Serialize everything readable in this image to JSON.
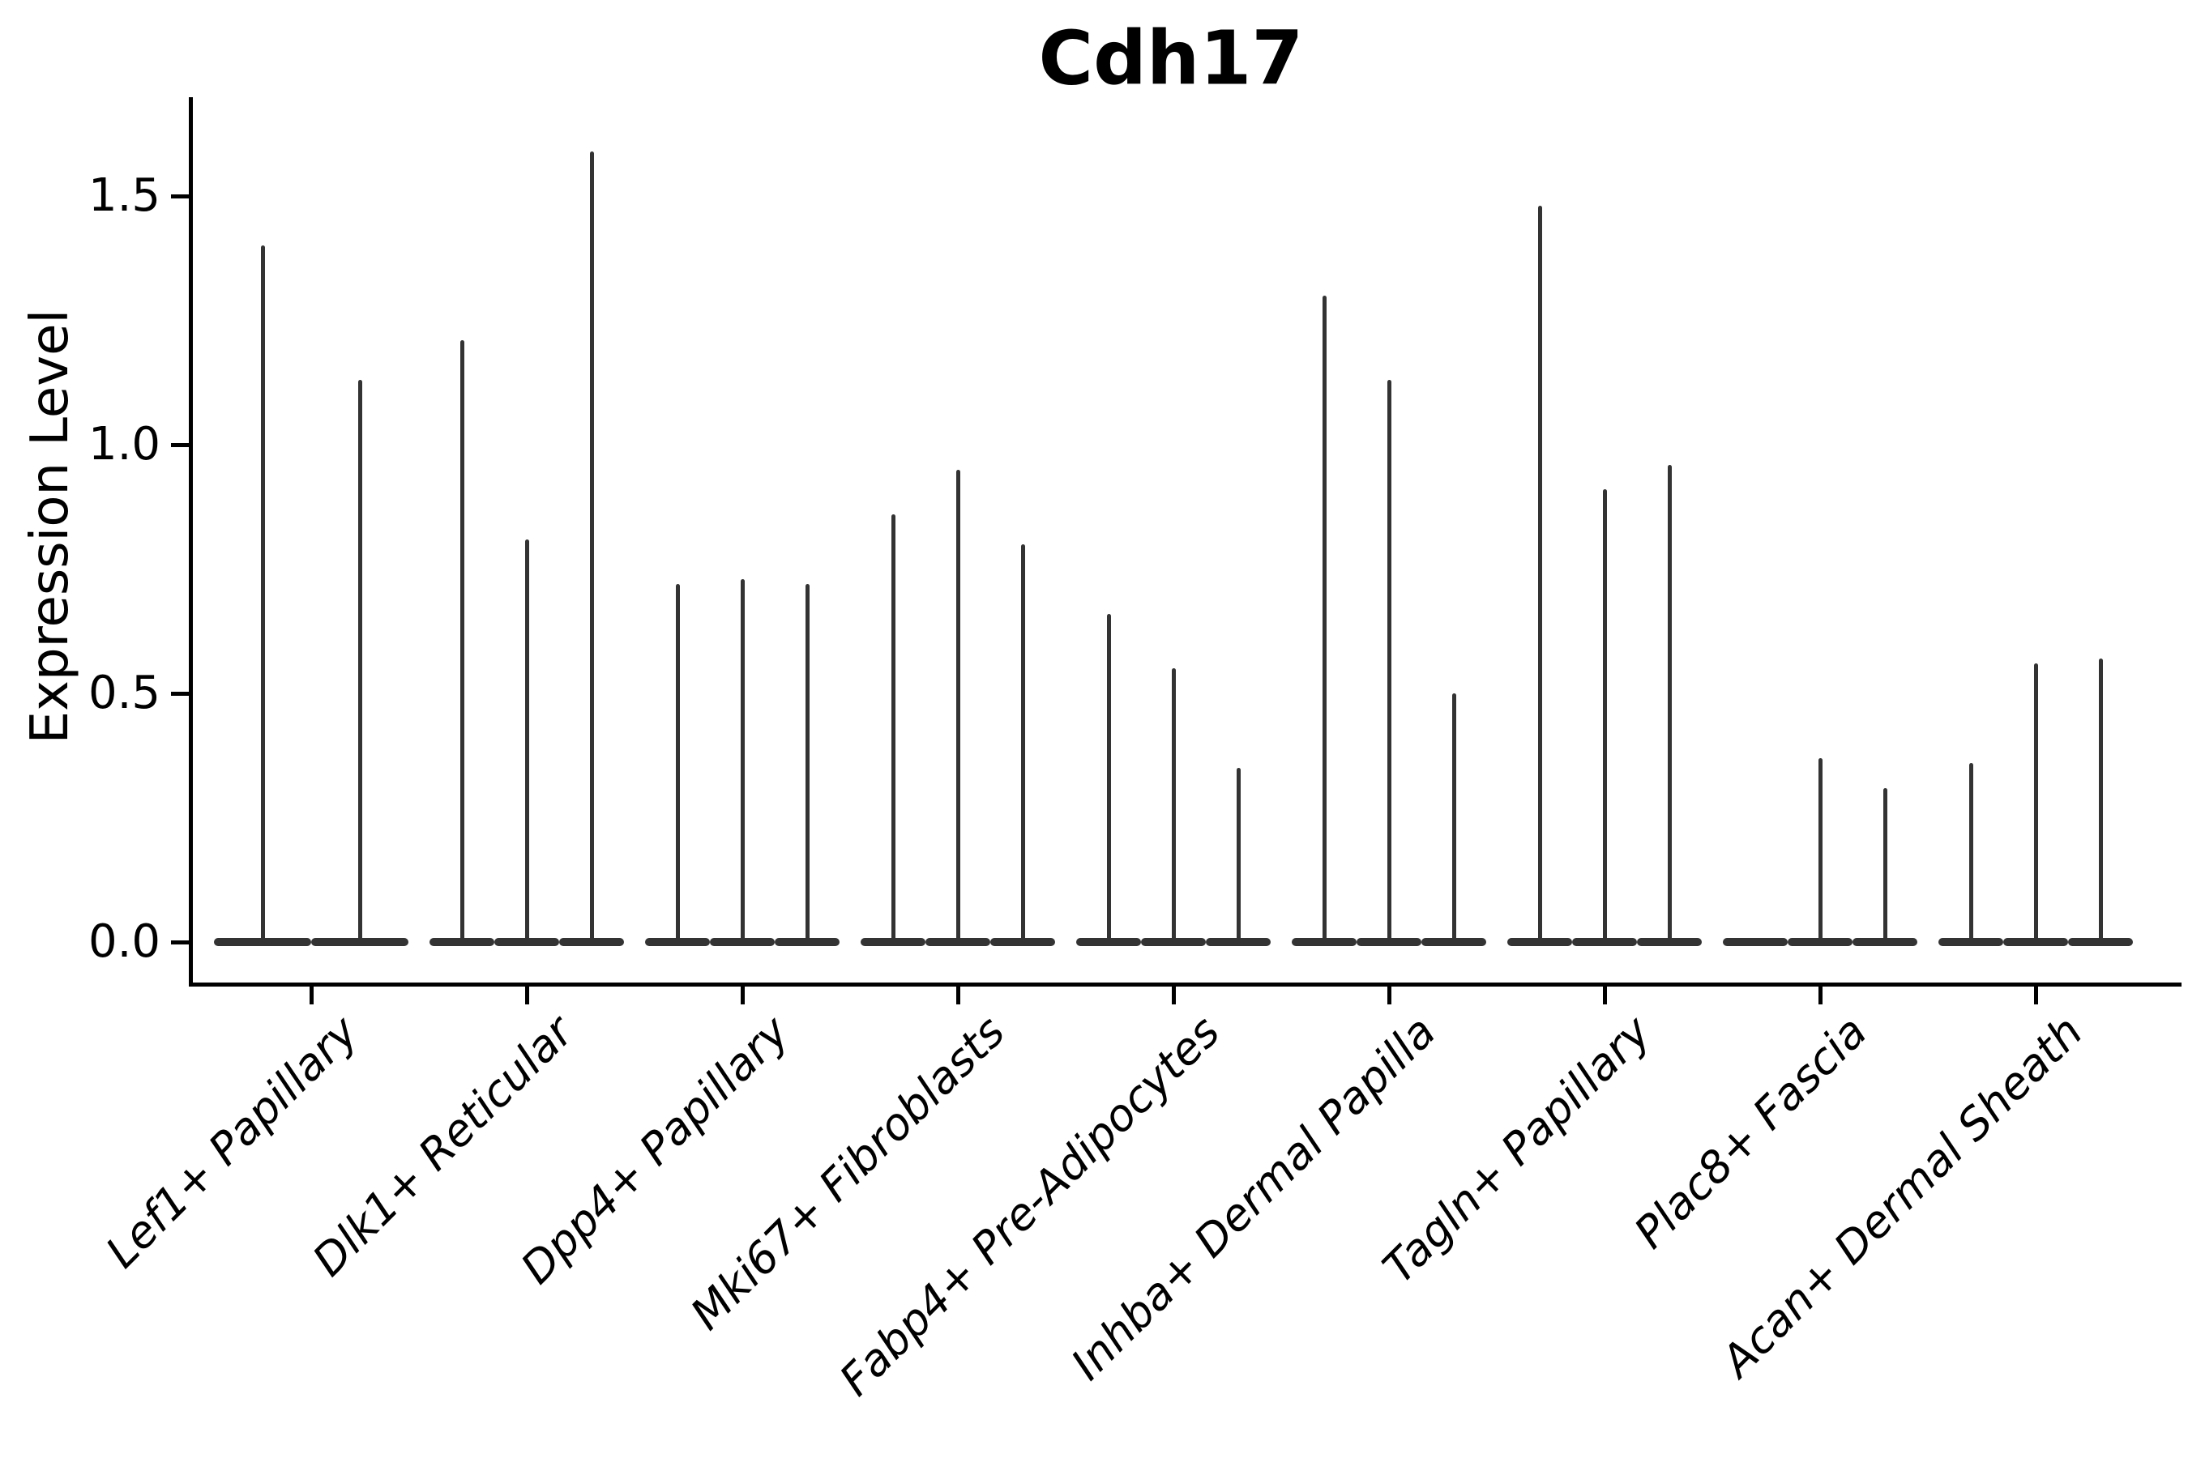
{
  "title": "Cdh17",
  "ylabel": "Expression Level",
  "chart_data": {
    "type": "violin",
    "title": "Cdh17",
    "xlabel": "",
    "ylabel": "Expression Level",
    "ylim": [
      -0.09,
      1.7
    ],
    "yticks": [
      0.0,
      0.5,
      1.0,
      1.5
    ],
    "ytick_labels": [
      "0.0",
      "0.5",
      "1.0",
      "1.5"
    ],
    "grid": false,
    "legend_position": "none",
    "violin_color": "#333333",
    "axis_color": "#000000",
    "orientation": "vertical",
    "x_label_rotation_deg": 45,
    "categories": [
      "Lef1+ Papillary",
      "Dlk1+ Reticular",
      "Dpp4+ Papillary",
      "Mki67+ Fibroblasts",
      "Fabp4+ Pre-Adipocytes",
      "Inhba+ Dermal Papilla",
      "Tagln+ Papillary",
      "Plac8+ Fascia",
      "Acan+ Dermal Sheath"
    ],
    "groups": [
      {
        "label": "Lef1+ Papillary",
        "violin_maxima": [
          1.4,
          1.13
        ]
      },
      {
        "label": "Dlk1+ Reticular",
        "violin_maxima": [
          1.21,
          0.81,
          1.59
        ]
      },
      {
        "label": "Dpp4+ Papillary",
        "violin_maxima": [
          0.72,
          0.73,
          0.72
        ]
      },
      {
        "label": "Mki67+ Fibroblasts",
        "violin_maxima": [
          0.86,
          0.95,
          0.8
        ]
      },
      {
        "label": "Fabp4+ Pre-Adipocytes",
        "violin_maxima": [
          0.66,
          0.55,
          0.35
        ]
      },
      {
        "label": "Inhba+ Dermal Papilla",
        "violin_maxima": [
          1.3,
          1.13,
          0.5
        ]
      },
      {
        "label": "Tagln+ Papillary",
        "violin_maxima": [
          1.48,
          0.91,
          0.96
        ]
      },
      {
        "label": "Plac8+ Fascia",
        "violin_maxima": [
          0.0,
          0.37,
          0.31
        ]
      },
      {
        "label": "Acan+ Dermal Sheath",
        "violin_maxima": [
          0.36,
          0.56,
          0.57
        ]
      }
    ],
    "description": "Violin plot of Cdh17 expression per fibroblast subtype; nearly all cells are at 0 so each violin renders as a flat base at 0 with a thin spike up to its maximum expression value."
  }
}
